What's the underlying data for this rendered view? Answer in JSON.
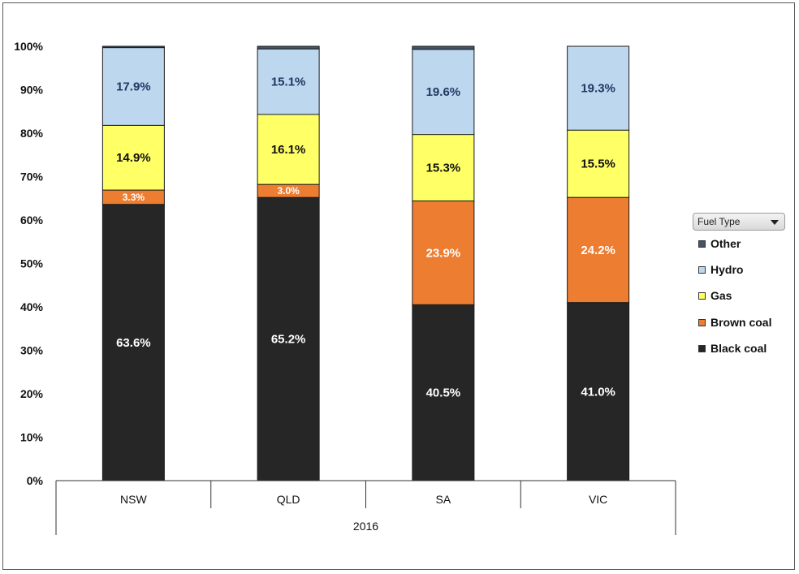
{
  "chart_data": {
    "type": "bar",
    "stacked": true,
    "categories": [
      "NSW",
      "QLD",
      "SA",
      "VIC"
    ],
    "group_label": "2016",
    "ylim": [
      0,
      100
    ],
    "y_ticks": [
      "0%",
      "10%",
      "20%",
      "30%",
      "40%",
      "50%",
      "60%",
      "70%",
      "80%",
      "90%",
      "100%"
    ],
    "legend_title": "Fuel Type",
    "legend_position": "right",
    "grid": false,
    "series": [
      {
        "name": "Black coal",
        "color": "#262626",
        "label_color": "#ffffff",
        "values": [
          63.6,
          65.2,
          40.5,
          41.0
        ],
        "labels": [
          "63.6%",
          "65.2%",
          "40.5%",
          "41.0%"
        ]
      },
      {
        "name": "Brown coal",
        "color": "#ed7d31",
        "label_color": "#ffffff",
        "values": [
          3.3,
          3.0,
          23.9,
          24.2
        ],
        "labels": [
          "3.3%",
          "3.0%",
          "23.9%",
          "24.2%"
        ]
      },
      {
        "name": "Gas",
        "color": "#ffff66",
        "label_color": "#111111",
        "values": [
          14.9,
          16.1,
          15.3,
          15.5
        ],
        "labels": [
          "14.9%",
          "16.1%",
          "15.3%",
          "15.5%"
        ]
      },
      {
        "name": "Hydro",
        "color": "#bdd7ee",
        "label_color": "#1f3864",
        "values": [
          17.9,
          15.1,
          19.6,
          19.3
        ],
        "labels": [
          "17.9%",
          "15.1%",
          "19.6%",
          "19.3%"
        ]
      },
      {
        "name": "Other",
        "color": "#44546a",
        "label_color": "#ffffff",
        "values": [
          0.3,
          0.6,
          0.7,
          0.0
        ],
        "labels": [
          "",
          "",
          "",
          ""
        ]
      }
    ]
  }
}
